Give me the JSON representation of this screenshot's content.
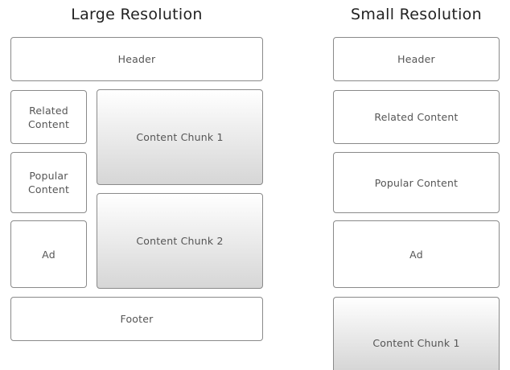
{
  "large": {
    "title": "Large Resolution",
    "header": "Header",
    "related": "Related Content",
    "popular": "Popular Content",
    "ad": "Ad",
    "chunk1": "Content Chunk 1",
    "chunk2": "Content Chunk 2",
    "footer": "Footer"
  },
  "small": {
    "title": "Small Resolution",
    "header": "Header",
    "related": "Related Content",
    "popular": "Popular Content",
    "ad": "Ad",
    "chunk1": "Content Chunk 1"
  }
}
